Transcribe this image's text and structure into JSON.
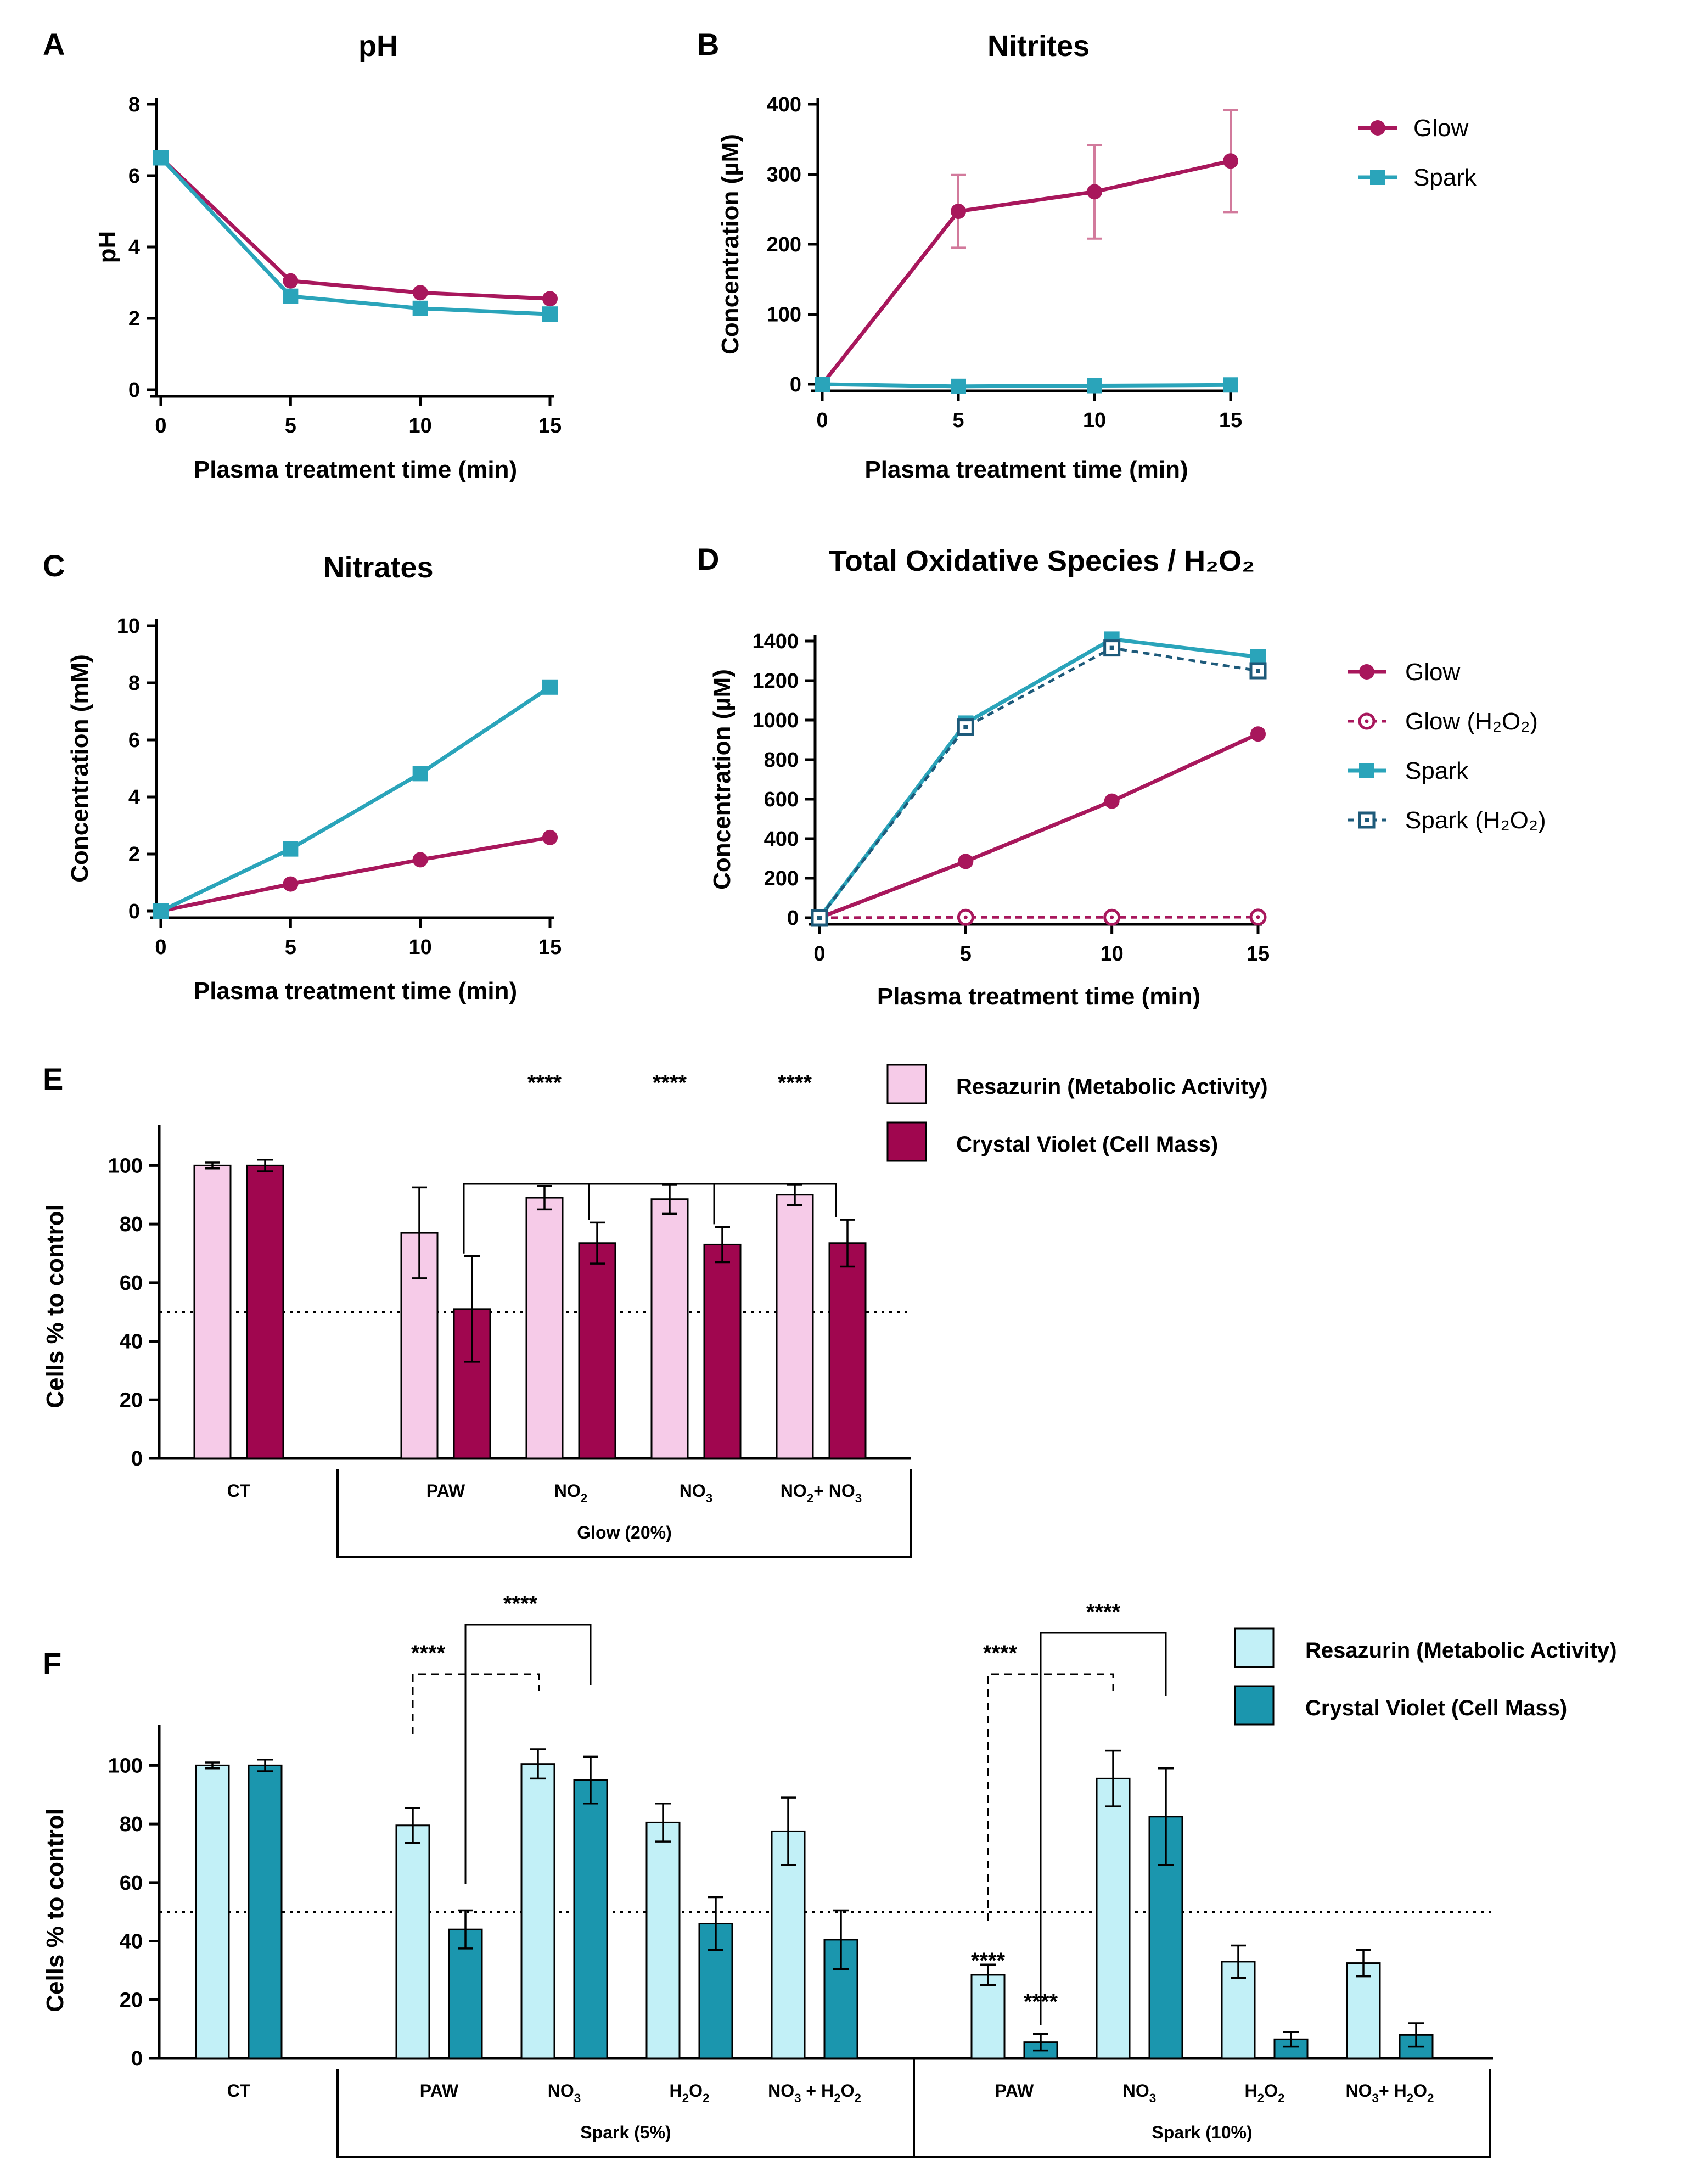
{
  "colors": {
    "glow": "#A8175C",
    "spark": "#2AA4BA",
    "spark_h2o2": "#1D5A7A",
    "e_resazurin": "#F6CBE8",
    "e_crystal": "#A0064F",
    "f_resazurin": "#C2F0F7",
    "f_crystal": "#1B96AE"
  },
  "legend_top": {
    "glow": "Glow",
    "spark": "Spark"
  },
  "legend_d": {
    "glow": "Glow",
    "glow_h2o2": "Glow (H₂O₂)",
    "spark": "Spark",
    "spark_h2o2": "Spark (H₂O₂)"
  },
  "legend_bars": {
    "resazurin": "Resazurin (Metabolic Activity)",
    "crystal": "Crystal Violet (Cell Mass)"
  },
  "chart_data": [
    {
      "panel": "A",
      "type": "line",
      "title": "pH",
      "xlabel": "Plasma treatment time (min)",
      "ylabel": "pH",
      "x": [
        0,
        5,
        10,
        15
      ],
      "xticks": [
        "0",
        "5",
        "10",
        "15"
      ],
      "ylim": [
        0,
        8
      ],
      "yticks": [
        "0",
        "2",
        "4",
        "6",
        "8"
      ],
      "series": [
        {
          "name": "Glow",
          "values": [
            6.5,
            3.05,
            2.72,
            2.55
          ]
        },
        {
          "name": "Spark",
          "values": [
            6.5,
            2.62,
            2.28,
            2.12
          ]
        }
      ]
    },
    {
      "panel": "B",
      "type": "line",
      "title": "Nitrites",
      "xlabel": "Plasma treatment time (min)",
      "ylabel": "Concentration (µM)",
      "x": [
        0,
        5,
        10,
        15
      ],
      "xticks": [
        "0",
        "5",
        "10",
        "15"
      ],
      "ylim": [
        0,
        400
      ],
      "yticks": [
        "0",
        "100",
        "200",
        "300",
        "400"
      ],
      "series": [
        {
          "name": "Glow",
          "values": [
            0,
            247,
            275,
            319
          ],
          "errors": [
            0,
            52,
            67,
            73
          ]
        },
        {
          "name": "Spark",
          "values": [
            0,
            -3,
            -2,
            -1
          ]
        }
      ]
    },
    {
      "panel": "C",
      "type": "line",
      "title": "Nitrates",
      "xlabel": "Plasma treatment time (min)",
      "ylabel": "Concentration (mM)",
      "x": [
        0,
        5,
        10,
        15
      ],
      "xticks": [
        "0",
        "5",
        "10",
        "15"
      ],
      "ylim": [
        0,
        10
      ],
      "yticks": [
        "0",
        "2",
        "4",
        "6",
        "8",
        "10"
      ],
      "series": [
        {
          "name": "Glow",
          "values": [
            0,
            0.95,
            1.8,
            2.58
          ]
        },
        {
          "name": "Spark",
          "values": [
            0,
            2.18,
            4.82,
            7.85
          ]
        }
      ]
    },
    {
      "panel": "D",
      "type": "line",
      "title": "Total Oxidative Species / H₂O₂",
      "xlabel": "Plasma treatment time (min)",
      "ylabel": "Concentration (µM)",
      "x": [
        0,
        5,
        10,
        15
      ],
      "xticks": [
        "0",
        "5",
        "10",
        "15"
      ],
      "ylim": [
        0,
        1400
      ],
      "yticks": [
        "0",
        "200",
        "400",
        "600",
        "800",
        "1000",
        "1200",
        "1400"
      ],
      "series": [
        {
          "name": "Glow",
          "values": [
            0,
            285,
            590,
            930
          ]
        },
        {
          "name": "Glow (H₂O₂)",
          "values": [
            0,
            2,
            2,
            3
          ]
        },
        {
          "name": "Spark",
          "values": [
            0,
            985,
            1410,
            1320
          ]
        },
        {
          "name": "Spark (H₂O₂)",
          "values": [
            0,
            965,
            1365,
            1250
          ]
        }
      ]
    },
    {
      "panel": "E",
      "type": "bar",
      "ylabel": "Cells % to control",
      "ylim": [
        0,
        110
      ],
      "yticks": [
        "0",
        "20",
        "40",
        "60",
        "80",
        "100"
      ],
      "reference_line": 50,
      "categories": [
        "CT",
        "PAW",
        "NO₂",
        "NO₃",
        "NO₂+ NO₃"
      ],
      "groups": [
        {
          "label": "Glow (20%)",
          "categories": [
            "PAW",
            "NO₂",
            "NO₃",
            "NO₂+ NO₃"
          ]
        }
      ],
      "series": [
        {
          "name": "Resazurin (Metabolic Activity)",
          "values": [
            100,
            77,
            89,
            88.5,
            90
          ],
          "errors": [
            1,
            15.5,
            4,
            5,
            3.5
          ]
        },
        {
          "name": "Crystal Violet (Cell Mass)",
          "values": [
            100,
            51,
            73.5,
            73,
            73.5
          ],
          "errors": [
            2,
            18,
            7,
            6,
            8
          ]
        }
      ],
      "significance": [
        "****",
        "****",
        "****"
      ]
    },
    {
      "panel": "F",
      "type": "bar",
      "ylabel": "Cells % to control",
      "ylim": [
        0,
        110
      ],
      "yticks": [
        "0",
        "20",
        "40",
        "60",
        "80",
        "100"
      ],
      "reference_line": 50,
      "categories": [
        "CT",
        "PAW",
        "NO₃",
        "H₂O₂",
        "NO₃ + H₂O₂",
        "PAW",
        "NO₃",
        "H₂O₂",
        "NO₃+ H₂O₂"
      ],
      "groups": [
        {
          "label": "Spark (5%)",
          "categories": [
            "PAW",
            "NO₃",
            "H₂O₂",
            "NO₃ + H₂O₂"
          ]
        },
        {
          "label": "Spark (10%)",
          "categories": [
            "PAW",
            "NO₃",
            "H₂O₂",
            "NO₃+ H₂O₂"
          ]
        }
      ],
      "series": [
        {
          "name": "Resazurin (Metabolic Activity)",
          "values": [
            100,
            79.5,
            100.5,
            80.5,
            77.5,
            28.5,
            95.5,
            33,
            32.5
          ],
          "errors": [
            1,
            6,
            5,
            6.5,
            11.5,
            3.5,
            9.5,
            5.5,
            4.5
          ]
        },
        {
          "name": "Crystal Violet (Cell Mass)",
          "values": [
            100,
            44,
            95,
            46,
            40.5,
            5.5,
            82.5,
            6.5,
            8
          ],
          "errors": [
            2,
            6.5,
            8,
            9,
            10,
            2.8,
            16.5,
            2.5,
            4
          ]
        }
      ],
      "significance": [
        "****",
        "****",
        "****",
        "****",
        "****",
        "****"
      ]
    }
  ]
}
